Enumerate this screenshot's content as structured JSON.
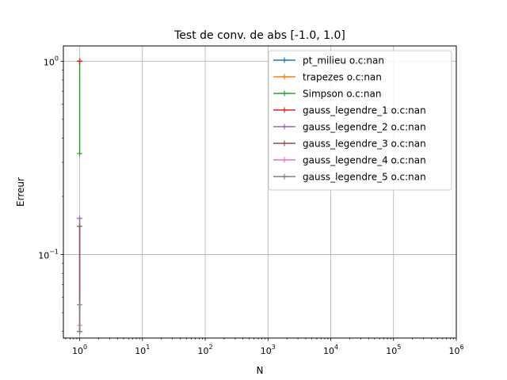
{
  "chart_data": {
    "type": "line",
    "title": "Test de conv. de abs [-1.0, 1.0]",
    "xlabel": "N",
    "ylabel": "Erreur",
    "xscale": "log",
    "yscale": "log",
    "xlim": [
      0.55,
      1000000
    ],
    "ylim": [
      0.037,
      1.2
    ],
    "grid": true,
    "legend_position": "top-right",
    "x_ticks": [
      {
        "value": 1,
        "base": "10",
        "exp": "0"
      },
      {
        "value": 10,
        "base": "10",
        "exp": "1"
      },
      {
        "value": 100,
        "base": "10",
        "exp": "2"
      },
      {
        "value": 1000,
        "base": "10",
        "exp": "3"
      },
      {
        "value": 10000,
        "base": "10",
        "exp": "4"
      },
      {
        "value": 100000,
        "base": "10",
        "exp": "5"
      },
      {
        "value": 1000000,
        "base": "10",
        "exp": "6"
      }
    ],
    "y_ticks": [
      {
        "value": 1,
        "base": "10",
        "exp": "0"
      },
      {
        "value": 0.1,
        "base": "10",
        "exp": "−1"
      }
    ],
    "series": [
      {
        "name": "pt_milieu o.c:nan",
        "color": "#1f77b4",
        "x": [
          1,
          1
        ],
        "y": [
          1.0,
          1.0
        ]
      },
      {
        "name": "trapezes o.c:nan",
        "color": "#ff7f0e",
        "x": [
          1,
          1
        ],
        "y": [
          1.0,
          1.0
        ]
      },
      {
        "name": "Simpson o.c:nan",
        "color": "#2ca02c",
        "x": [
          1,
          1
        ],
        "y": [
          1.0,
          0.333
        ]
      },
      {
        "name": "gauss_legendre_1 o.c:nan",
        "color": "#d62728",
        "x": [
          1,
          1
        ],
        "y": [
          1.0,
          1.0
        ]
      },
      {
        "name": "gauss_legendre_2 o.c:nan",
        "color": "#9467bd",
        "x": [
          1,
          1
        ],
        "y": [
          0.154,
          0.04
        ]
      },
      {
        "name": "gauss_legendre_3 o.c:nan",
        "color": "#8c564b",
        "x": [
          1,
          1
        ],
        "y": [
          0.14,
          0.04
        ]
      },
      {
        "name": "gauss_legendre_4 o.c:nan",
        "color": "#e377c2",
        "x": [
          1,
          1
        ],
        "y": [
          0.043,
          0.04
        ]
      },
      {
        "name": "gauss_legendre_5 o.c:nan",
        "color": "#7f7f7f",
        "x": [
          1,
          1
        ],
        "y": [
          0.055,
          0.04
        ]
      }
    ]
  }
}
